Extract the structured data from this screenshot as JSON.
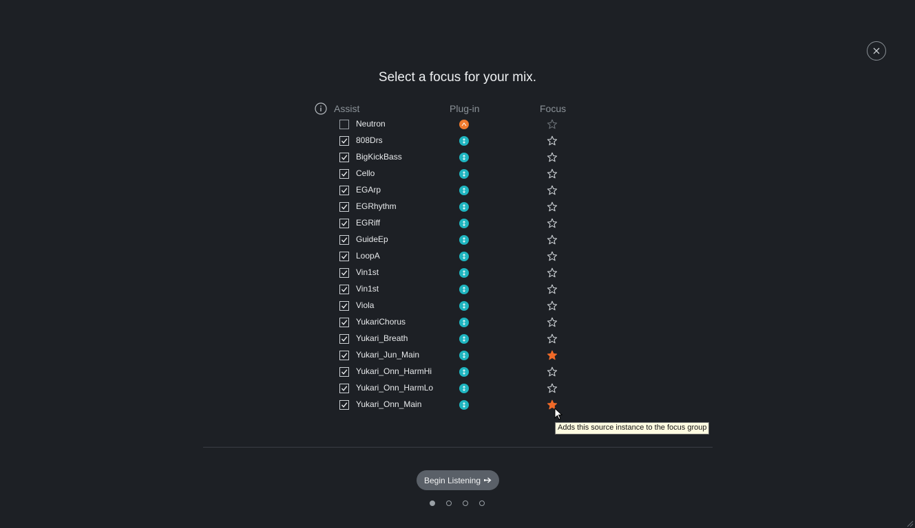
{
  "title": "Select a focus for your mix.",
  "columns": {
    "assist": "Assist",
    "plugin": "Plug-in",
    "focus": "Focus"
  },
  "colors": {
    "neutron_orange": "#f07a2e",
    "plugin_teal": "#1fb5c0",
    "focus_star": "#f06a28"
  },
  "tracks": [
    {
      "name": "Neutron",
      "assist": false,
      "plugin": "neutron",
      "focus": false,
      "focus_enabled": false
    },
    {
      "name": "808Drs",
      "assist": true,
      "plugin": "relay",
      "focus": false,
      "focus_enabled": true
    },
    {
      "name": "BigKickBass",
      "assist": true,
      "plugin": "relay",
      "focus": false,
      "focus_enabled": true
    },
    {
      "name": "Cello",
      "assist": true,
      "plugin": "relay",
      "focus": false,
      "focus_enabled": true
    },
    {
      "name": "EGArp",
      "assist": true,
      "plugin": "relay",
      "focus": false,
      "focus_enabled": true
    },
    {
      "name": "EGRhythm",
      "assist": true,
      "plugin": "relay",
      "focus": false,
      "focus_enabled": true
    },
    {
      "name": "EGRiff",
      "assist": true,
      "plugin": "relay",
      "focus": false,
      "focus_enabled": true
    },
    {
      "name": "GuideEp",
      "assist": true,
      "plugin": "relay",
      "focus": false,
      "focus_enabled": true
    },
    {
      "name": "LoopA",
      "assist": true,
      "plugin": "relay",
      "focus": false,
      "focus_enabled": true
    },
    {
      "name": "Vin1st",
      "assist": true,
      "plugin": "relay",
      "focus": false,
      "focus_enabled": true
    },
    {
      "name": "Vin1st",
      "assist": true,
      "plugin": "relay",
      "focus": false,
      "focus_enabled": true
    },
    {
      "name": "Viola",
      "assist": true,
      "plugin": "relay",
      "focus": false,
      "focus_enabled": true
    },
    {
      "name": "YukariChorus",
      "assist": true,
      "plugin": "relay",
      "focus": false,
      "focus_enabled": true
    },
    {
      "name": "Yukari_Breath",
      "assist": true,
      "plugin": "relay",
      "focus": false,
      "focus_enabled": true
    },
    {
      "name": "Yukari_Jun_Main",
      "assist": true,
      "plugin": "relay",
      "focus": true,
      "focus_enabled": true
    },
    {
      "name": "Yukari_Onn_HarmHi",
      "assist": true,
      "plugin": "relay",
      "focus": false,
      "focus_enabled": true
    },
    {
      "name": "Yukari_Onn_HarmLo",
      "assist": true,
      "plugin": "relay",
      "focus": false,
      "focus_enabled": true
    },
    {
      "name": "Yukari_Onn_Main",
      "assist": true,
      "plugin": "relay",
      "focus": true,
      "focus_enabled": true
    }
  ],
  "tooltip": "Adds this source instance to the focus group",
  "begin_button": {
    "label": "Begin Listening",
    "icon": "arrow-right-icon"
  },
  "pagination": {
    "pages": 4,
    "current": 1
  },
  "icons": {
    "close": "close-icon",
    "info": "info-icon",
    "star": "star-icon",
    "checkbox": "checkmark-icon"
  }
}
